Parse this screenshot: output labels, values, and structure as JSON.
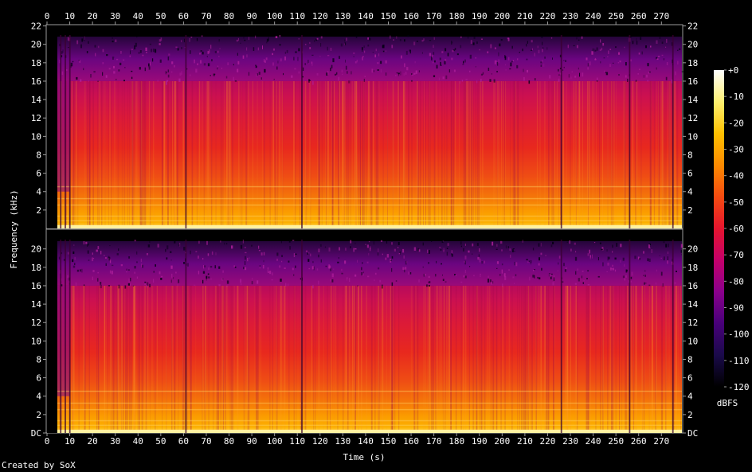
{
  "chart_data": {
    "type": "heatmap",
    "xlabel": "Time (s)",
    "ylabel": "Frequency (kHz)",
    "colorbar_label": "dBFS",
    "x_ticks": [
      0,
      10,
      20,
      30,
      40,
      50,
      60,
      70,
      80,
      90,
      100,
      110,
      120,
      130,
      140,
      150,
      160,
      170,
      180,
      190,
      200,
      210,
      220,
      230,
      240,
      250,
      260,
      270
    ],
    "x_range": [
      0,
      279
    ],
    "y_range_khz": [
      0,
      22.05
    ],
    "y_ticks_top": [
      "2",
      "4",
      "6",
      "8",
      "10",
      "12",
      "14",
      "16",
      "18",
      "20",
      "22"
    ],
    "y_ticks_bottom": [
      "DC",
      "2",
      "4",
      "6",
      "8",
      "10",
      "12",
      "14",
      "16",
      "18",
      "20"
    ],
    "colorbar_ticks": [
      "+0",
      "-10",
      "-20",
      "-30",
      "-40",
      "-50",
      "-60",
      "-70",
      "-80",
      "-90",
      "-100",
      "-110",
      "-120"
    ],
    "colorbar_range_db": [
      -120,
      0
    ],
    "colors": [
      "#000000",
      "#1a0a4a",
      "#48007a",
      "#8a008c",
      "#c4006a",
      "#e5152e",
      "#f54b10",
      "#fc8a00",
      "#ffc000",
      "#fff070",
      "#ffffff"
    ],
    "channels": [
      {
        "channel": 1,
        "cutoff_khz": 16,
        "loudness_profile": "dense-full"
      },
      {
        "channel": 2,
        "cutoff_khz": 16,
        "loudness_profile": "dense-full"
      }
    ],
    "quiet_moments_s": [
      4,
      6,
      8,
      10,
      61,
      112,
      226,
      256,
      275
    ],
    "grid": false
  },
  "footer": {
    "credit": "Created by SoX"
  }
}
